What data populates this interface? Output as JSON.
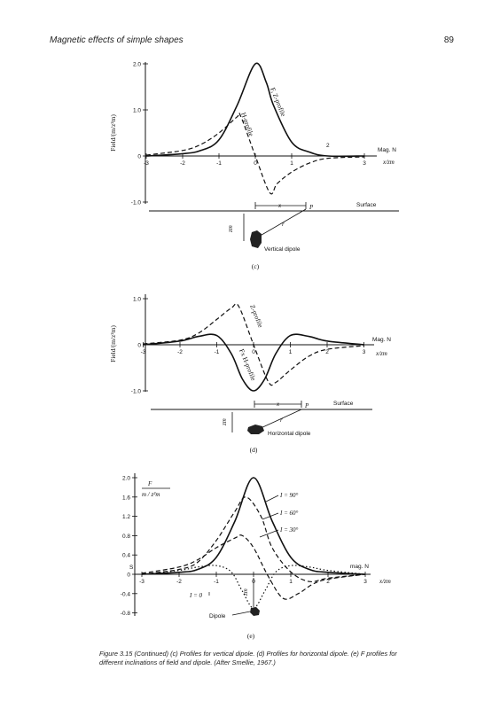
{
  "header": {
    "left": "Magnetic effects of simple shapes",
    "page_number": "89"
  },
  "caption": "Figure 3.15 (Continued) (c) Profiles for vertical dipole. (d) Profiles for horizontal dipole. (e) F profiles for different inclinations of field and dipole. (After Smellie, 1967.)",
  "chart_data": [
    {
      "type": "line",
      "panel_label": "(c)",
      "ylabel": "Field/(m/z²m)",
      "xlabel": "x/zm",
      "x_ticks": [
        "-3",
        "-2",
        "-1",
        "0",
        "1",
        "3"
      ],
      "y_ticks": [
        "2.0",
        "1.0",
        "0",
        "-1.0"
      ],
      "ylim": [
        -1.0,
        2.0
      ],
      "xlim": [
        -3.2,
        3.2
      ],
      "series": [
        {
          "name": "Fz Z-profile",
          "label": "F, Z-profile",
          "style": "solid",
          "x": [
            -3.0,
            -2.0,
            -1.5,
            -1.0,
            -0.5,
            0.0,
            0.3,
            0.5,
            1.0,
            1.5,
            2.0,
            3.0
          ],
          "y": [
            0.0,
            0.05,
            0.12,
            0.35,
            1.1,
            2.0,
            1.6,
            1.1,
            0.3,
            0.08,
            0.0,
            0.0
          ]
        },
        {
          "name": "H-profile",
          "label": "H-profile",
          "style": "dashed",
          "x": [
            -3.0,
            -2.0,
            -1.5,
            -1.0,
            -0.5,
            -0.4,
            0.0,
            0.4,
            0.6,
            1.0,
            1.5,
            2.0,
            3.0
          ],
          "y": [
            0.02,
            0.12,
            0.25,
            0.5,
            0.85,
            0.86,
            0.0,
            -0.8,
            -0.6,
            -0.35,
            -0.15,
            -0.05,
            -0.02
          ]
        }
      ],
      "annotations": {
        "mag_n": "Mag. N",
        "surface": "Surface",
        "dipole": "Vertical dipole",
        "z_label": "2",
        "p_label": "P",
        "x_label": "x",
        "zm_label": "zm",
        "r_label": "r"
      }
    },
    {
      "type": "line",
      "panel_label": "(d)",
      "ylabel": "Field/(m/z²m)",
      "xlabel": "x/zm",
      "x_ticks": [
        "-3",
        "-2",
        "-1",
        "0",
        "1",
        "2",
        "3"
      ],
      "y_ticks": [
        "1.0",
        "0",
        "-1.0"
      ],
      "ylim": [
        -1.0,
        1.0
      ],
      "xlim": [
        -3.2,
        3.2
      ],
      "series": [
        {
          "name": "Z-profile",
          "label": "Z-profile",
          "style": "dashed",
          "x": [
            -3.0,
            -2.0,
            -1.5,
            -1.0,
            -0.6,
            -0.4,
            0.0,
            0.4,
            0.6,
            1.0,
            1.5,
            2.0,
            3.0
          ],
          "y": [
            0.02,
            0.1,
            0.25,
            0.55,
            0.8,
            0.83,
            0.0,
            -0.8,
            -0.82,
            -0.55,
            -0.25,
            -0.1,
            -0.02
          ]
        },
        {
          "name": "Fx H-profile",
          "label": "Fx H-profile",
          "style": "solid",
          "x": [
            -3.0,
            -2.0,
            -1.5,
            -1.0,
            -0.6,
            -0.3,
            0.0,
            0.3,
            0.6,
            1.0,
            1.5,
            2.0,
            3.0
          ],
          "y": [
            0.0,
            0.08,
            0.18,
            0.2,
            -0.2,
            -0.75,
            -1.0,
            -0.75,
            -0.2,
            0.2,
            0.18,
            0.08,
            0.0
          ]
        }
      ],
      "annotations": {
        "mag_n": "Mag. N",
        "surface": "Surface",
        "dipole": "Horizontal dipole",
        "p_label": "P",
        "x_label": "x",
        "zm_label": "zm",
        "r_label": "r"
      }
    },
    {
      "type": "line",
      "panel_label": "(e)",
      "ylabel": "F / (m/z²m)",
      "xlabel": "x/zm",
      "x_ticks": [
        "-3",
        "-2",
        "-1",
        "0",
        "1",
        "2",
        "3"
      ],
      "y_ticks": [
        "2.0",
        "1.6",
        "1.2",
        "0.8",
        "0.4",
        "0",
        "-0.4",
        "-0.8"
      ],
      "ylim": [
        -0.8,
        2.0
      ],
      "xlim": [
        -3.2,
        3.2
      ],
      "series": [
        {
          "name": "I = 90°",
          "style": "solid",
          "x": [
            -3.0,
            -2.0,
            -1.5,
            -1.0,
            -0.5,
            0.0,
            0.5,
            1.0,
            1.5,
            2.0,
            3.0
          ],
          "y": [
            0.0,
            0.04,
            0.1,
            0.35,
            1.1,
            2.0,
            1.1,
            0.35,
            0.1,
            0.04,
            0.0
          ]
        },
        {
          "name": "I = 60°",
          "style": "dashed",
          "x": [
            -3.0,
            -2.0,
            -1.5,
            -1.0,
            -0.5,
            -0.2,
            0.2,
            0.5,
            1.0,
            1.5,
            2.0,
            3.0
          ],
          "y": [
            0.0,
            0.1,
            0.25,
            0.7,
            1.3,
            1.6,
            1.2,
            0.55,
            0.05,
            -0.15,
            -0.08,
            0.0
          ]
        },
        {
          "name": "I = 30°",
          "style": "dashed",
          "x": [
            -3.0,
            -2.0,
            -1.5,
            -1.0,
            -0.5,
            -0.3,
            0.0,
            0.4,
            0.8,
            1.2,
            1.6,
            2.0,
            3.0
          ],
          "y": [
            0.02,
            0.15,
            0.3,
            0.55,
            0.75,
            0.8,
            0.55,
            -0.05,
            -0.5,
            -0.4,
            -0.2,
            -0.1,
            0.0
          ]
        },
        {
          "name": "I = 0",
          "style": "dotted",
          "x": [
            -3.0,
            -2.0,
            -1.5,
            -1.0,
            -0.6,
            -0.3,
            0.0,
            0.3,
            0.6,
            1.0,
            1.5,
            2.0,
            3.0
          ],
          "y": [
            0.0,
            0.08,
            0.15,
            0.18,
            0.05,
            -0.35,
            -0.7,
            -0.35,
            0.05,
            0.18,
            0.15,
            0.08,
            0.0
          ]
        }
      ],
      "annotations": {
        "mag_n": "mag. N",
        "s_label": "S",
        "dipole": "Dipole",
        "zm_label": "zm",
        "y_title_top": "F",
        "y_title_bottom": "m / z²m"
      }
    }
  ]
}
